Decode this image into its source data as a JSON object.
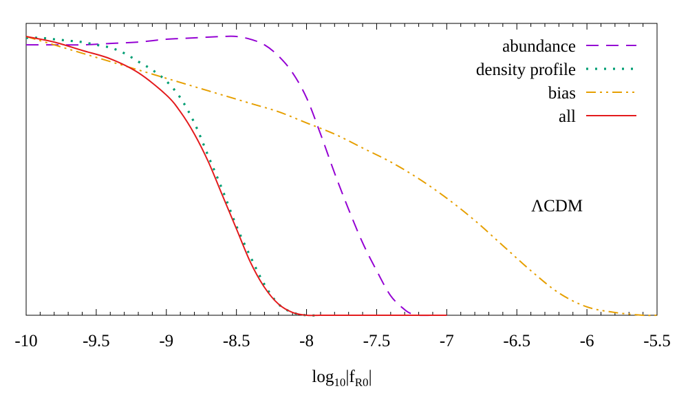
{
  "chart_data": {
    "type": "line",
    "title": "",
    "xlabel_main": "log",
    "xlabel_sub": "10",
    "xlabel_mid": "|f",
    "xlabel_sub2": "R0",
    "xlabel_end": "|",
    "ylabel": "",
    "xlim": [
      -10,
      -5.5
    ],
    "ylim": [
      0,
      1.05
    ],
    "x_ticks": [
      -10,
      -9.5,
      -9,
      -8.5,
      -8,
      -7.5,
      -7,
      -6.5,
      -6,
      -5.5
    ],
    "x_tick_labels": [
      "-10",
      "-9.5",
      "-9",
      "-8.5",
      "-8",
      "-7.5",
      "-7",
      "-6.5",
      "-6",
      "-5.5"
    ],
    "annotation": "ΛCDM",
    "legend_position": "top-right",
    "series": [
      {
        "name": "abundance",
        "color": "#9400d3",
        "style": "dash",
        "x": [
          -10,
          -9.8,
          -9.6,
          -9.4,
          -9.2,
          -9.0,
          -8.8,
          -8.6,
          -8.5,
          -8.4,
          -8.3,
          -8.2,
          -8.1,
          -8.0,
          -7.9,
          -7.8,
          -7.7,
          -7.6,
          -7.5,
          -7.4,
          -7.3,
          -7.25,
          -7.2,
          -7.1,
          -7.0
        ],
        "values": [
          0.97,
          0.97,
          0.97,
          0.975,
          0.98,
          0.99,
          0.995,
          1.0,
          1.0,
          0.99,
          0.97,
          0.93,
          0.87,
          0.78,
          0.65,
          0.51,
          0.38,
          0.26,
          0.16,
          0.07,
          0.02,
          0.005,
          0.0,
          0.0,
          0.0
        ]
      },
      {
        "name": "density profile",
        "color": "#009e73",
        "style": "dot",
        "x": [
          -10,
          -9.9,
          -9.8,
          -9.7,
          -9.6,
          -9.5,
          -9.4,
          -9.3,
          -9.2,
          -9.1,
          -9.0,
          -8.9,
          -8.8,
          -8.7,
          -8.6,
          -8.5,
          -8.4,
          -8.3,
          -8.2,
          -8.1,
          -8.0,
          -7.9
        ],
        "values": [
          0.995,
          0.995,
          0.99,
          0.985,
          0.98,
          0.97,
          0.96,
          0.94,
          0.91,
          0.88,
          0.84,
          0.78,
          0.69,
          0.57,
          0.45,
          0.32,
          0.21,
          0.11,
          0.04,
          0.01,
          0.0,
          0.0
        ]
      },
      {
        "name": "bias",
        "color": "#e69f00",
        "style": "dashdot",
        "x": [
          -10,
          -9.8,
          -9.6,
          -9.4,
          -9.2,
          -9.0,
          -8.8,
          -8.6,
          -8.4,
          -8.2,
          -8.0,
          -7.8,
          -7.6,
          -7.4,
          -7.2,
          -7.0,
          -6.8,
          -6.6,
          -6.4,
          -6.2,
          -6.0,
          -5.8,
          -5.6,
          -5.5
        ],
        "values": [
          1.0,
          0.97,
          0.94,
          0.91,
          0.88,
          0.85,
          0.82,
          0.79,
          0.76,
          0.73,
          0.69,
          0.65,
          0.6,
          0.55,
          0.49,
          0.42,
          0.34,
          0.25,
          0.16,
          0.08,
          0.03,
          0.01,
          0.0,
          0.0
        ]
      },
      {
        "name": "all",
        "color": "#e31a1c",
        "style": "solid",
        "x": [
          -10,
          -9.8,
          -9.6,
          -9.4,
          -9.2,
          -9.0,
          -8.9,
          -8.8,
          -8.7,
          -8.6,
          -8.5,
          -8.4,
          -8.3,
          -8.2,
          -8.1,
          -8.0,
          -7.9,
          -7.8,
          -7.5,
          -7.0
        ],
        "values": [
          1.0,
          0.98,
          0.95,
          0.92,
          0.87,
          0.79,
          0.73,
          0.65,
          0.55,
          0.43,
          0.31,
          0.19,
          0.1,
          0.04,
          0.01,
          0.0,
          0.0,
          0.0,
          0.0,
          0.0
        ]
      }
    ]
  }
}
